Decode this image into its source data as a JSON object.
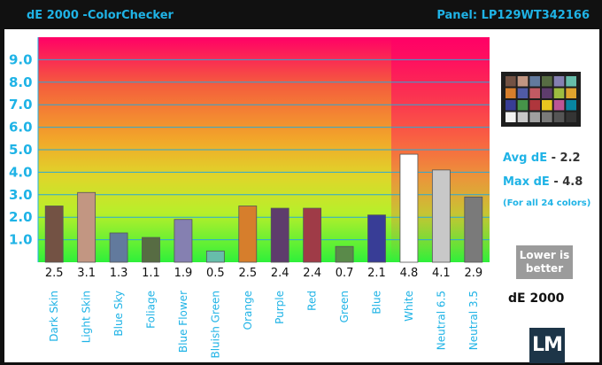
{
  "header": {
    "title": "dE 2000 -ColorChecker",
    "panel": "Panel: LP129WT342166"
  },
  "stats": {
    "avg_label": "Avg dE",
    "avg_value": "- 2.2",
    "max_label": "Max dE",
    "max_value": "- 4.8",
    "note": "(For all 24 colors)",
    "badge_line1": "Lower is",
    "badge_line2": "better",
    "metric_label": "dE 2000",
    "logo": "LM"
  },
  "chart_data": {
    "type": "bar",
    "title": "dE 2000 -ColorChecker",
    "categories": [
      "Dark Skin",
      "Light Skin",
      "Blue Sky",
      "Foliage",
      "Blue Flower",
      "Bluish Green",
      "Orange",
      "Purple",
      "Red",
      "Green",
      "Blue",
      "White",
      "Neutral 6.5",
      "Neutral 3.5"
    ],
    "values": [
      2.5,
      3.1,
      1.3,
      1.1,
      1.9,
      0.5,
      2.5,
      2.4,
      2.4,
      0.7,
      2.1,
      4.8,
      4.1,
      2.9
    ],
    "value_labels": [
      "2.5",
      "3.1",
      "1.3",
      "1.1",
      "1.9",
      "0.5",
      "2.5",
      "2.4",
      "2.4",
      "0.7",
      "2.1",
      "4.8",
      "4.1",
      "2.9"
    ],
    "bar_colors": [
      "#735244",
      "#c29682",
      "#627a9d",
      "#576c43",
      "#8580b1",
      "#67bdaa",
      "#d67e2c",
      "#5e3c6c",
      "#9f3b47",
      "#5a8a4a",
      "#383d96",
      "#ffffff",
      "#c8c8c8",
      "#7a7a7a"
    ],
    "yticks": [
      "1.0",
      "2.0",
      "3.0",
      "4.0",
      "5.0",
      "6.0",
      "7.0",
      "8.0",
      "9.0"
    ],
    "ylim": [
      0,
      10
    ],
    "xlabel": "",
    "ylabel": "",
    "grid": true,
    "background": "vertical gradient: green (low) to red (high)",
    "legend": "none"
  },
  "colorchecker_swatches": [
    "#735244",
    "#c29682",
    "#627a9d",
    "#576c43",
    "#8580b1",
    "#67bdaa",
    "#d67e2c",
    "#505ba6",
    "#c15a63",
    "#5e3c6c",
    "#9dbc40",
    "#e0a32e",
    "#383d96",
    "#469449",
    "#af363c",
    "#e7c71f",
    "#bb5695",
    "#0885a1",
    "#f3f3f2",
    "#c8c8c8",
    "#a0a0a0",
    "#7a7a79",
    "#555555",
    "#343434"
  ],
  "colors": {
    "accent": "#1fb3e6",
    "frame": "#111111"
  }
}
